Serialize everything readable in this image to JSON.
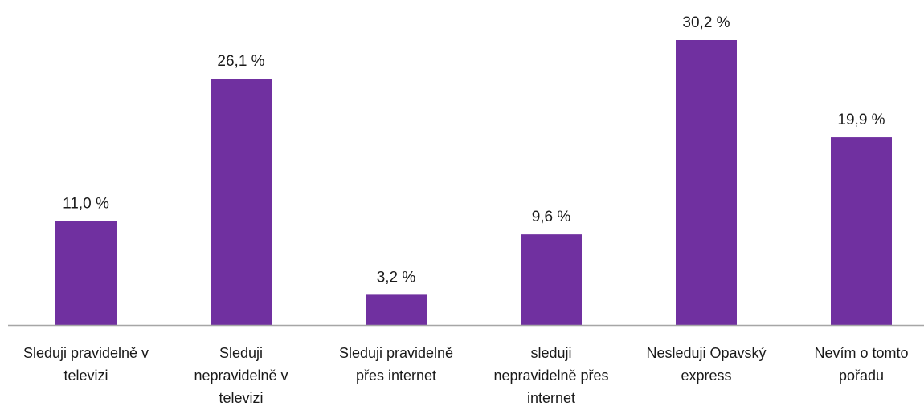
{
  "chart_data": {
    "type": "bar",
    "categories": [
      "Sleduji pravidelně v televizi",
      "Sleduji nepravidelně v televizi",
      "Sleduji pravidelně přes internet",
      "sleduji nepravidelně přes internet",
      "Nesleduji Opavský express",
      "Nevím o tomto pořadu"
    ],
    "category_lines": [
      [
        "Sleduji pravidelně v",
        "televizi"
      ],
      [
        "Sleduji",
        "nepravidelně v",
        "televizi"
      ],
      [
        "Sleduji pravidelně",
        "přes internet"
      ],
      [
        "sleduji",
        "nepravidelně přes",
        "internet"
      ],
      [
        "Nesleduji Opavský",
        "express"
      ],
      [
        "Nevím o tomto",
        "pořadu"
      ]
    ],
    "values": [
      11.0,
      26.1,
      3.2,
      9.6,
      30.2,
      19.9
    ],
    "data_labels": [
      "11,0 %",
      "26,1 %",
      "3,2 %",
      "9,6 %",
      "30,2 %",
      "19,9 %"
    ],
    "ylim": [
      0,
      30.2
    ],
    "grid": false,
    "legend": "none",
    "bar_color": "#7030a0",
    "axis_color": "#a6a6a6"
  }
}
